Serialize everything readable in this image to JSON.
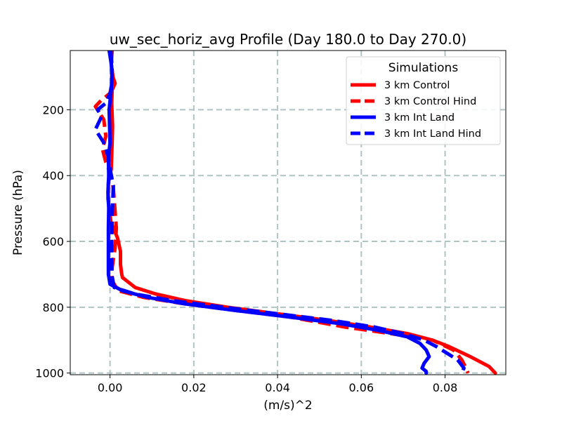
{
  "chart_data": {
    "type": "line",
    "title": "uw_sec_horiz_avg Profile (Day 180.0 to Day 270.0)",
    "xlabel": "(m/s)^2",
    "ylabel": "Pressure (hPa)",
    "xlim": [
      -0.0095,
      0.0945
    ],
    "ylim": [
      1005,
      20
    ],
    "y_inverted": true,
    "grid": true,
    "xticks": [
      0.0,
      0.02,
      0.04,
      0.06,
      0.08
    ],
    "xtick_labels": [
      "0.00",
      "0.02",
      "0.04",
      "0.06",
      "0.08"
    ],
    "yticks": [
      200,
      400,
      600,
      800,
      1000
    ],
    "ytick_labels": [
      "200",
      "400",
      "600",
      "800",
      "1000"
    ],
    "legend": {
      "title": "Simulations",
      "placement": "upper-right"
    },
    "series": [
      {
        "name": "3 km Control",
        "color": "#ff0000",
        "dash": "solid",
        "x": [
          0.0005,
          0.0003,
          0.0007,
          0.0012,
          0.0005,
          0.0004,
          0.0006,
          0.0005,
          0.0003,
          -0.0004,
          -0.0005,
          0.0002,
          0.0018,
          0.0025,
          0.0025,
          0.0028,
          0.003,
          0.004,
          0.006,
          0.011,
          0.018,
          0.028,
          0.04,
          0.052,
          0.062,
          0.071,
          0.077,
          0.081,
          0.086,
          0.0905,
          0.092
        ],
        "y": [
          20,
          60,
          100,
          120,
          140,
          180,
          250,
          300,
          380,
          420,
          470,
          540,
          590,
          630,
          670,
          700,
          710,
          720,
          740,
          760,
          780,
          800,
          820,
          840,
          860,
          880,
          900,
          920,
          950,
          980,
          1000
        ]
      },
      {
        "name": "3 km Control Hind",
        "color": "#ff0000",
        "dash": "dashed",
        "x": [
          0.0002,
          0.0005,
          0.0004,
          0.0,
          -0.002,
          -0.0035,
          -0.0015,
          -0.001,
          -0.0018,
          -0.001,
          0.0003,
          0.0008,
          0.0015,
          0.0012,
          0.0005,
          0.0005,
          0.002,
          0.008,
          0.018,
          0.03,
          0.043,
          0.056,
          0.067,
          0.077,
          0.082,
          0.084,
          0.085,
          0.0855
        ],
        "y": [
          20,
          80,
          120,
          150,
          170,
          190,
          230,
          280,
          320,
          360,
          400,
          440,
          560,
          620,
          680,
          720,
          750,
          770,
          790,
          810,
          830,
          860,
          880,
          900,
          930,
          960,
          985,
          1000
        ]
      },
      {
        "name": "3 km Int Land",
        "color": "#0000ff",
        "dash": "solid",
        "x": [
          -0.0002,
          0.0003,
          0.0005,
          0.0002,
          -0.0002,
          -0.0001,
          0.0,
          -0.0004,
          -0.0003,
          -0.0005,
          -0.0003,
          -0.0004,
          -0.0004,
          -0.0004,
          0.0,
          0.003,
          0.009,
          0.018,
          0.03,
          0.043,
          0.055,
          0.064,
          0.071,
          0.074,
          0.0755,
          0.0762,
          0.075,
          0.0745,
          0.0755,
          0.0755
        ],
        "y": [
          20,
          60,
          100,
          150,
          200,
          250,
          300,
          350,
          400,
          450,
          500,
          560,
          620,
          700,
          730,
          750,
          770,
          790,
          810,
          830,
          850,
          870,
          890,
          910,
          930,
          950,
          970,
          985,
          995,
          1000
        ]
      },
      {
        "name": "3 km Int Land Hind",
        "color": "#0000ff",
        "dash": "dashed",
        "x": [
          0.0002,
          0.0005,
          0.0003,
          -0.001,
          -0.003,
          -0.002,
          -0.0035,
          -0.0015,
          -0.0005,
          0.0,
          0.0008,
          0.0005,
          0.0004,
          0.0004,
          0.001,
          0.006,
          0.015,
          0.027,
          0.04,
          0.053,
          0.063,
          0.07,
          0.075,
          0.078,
          0.0805,
          0.083,
          0.0845,
          0.084
        ],
        "y": [
          20,
          80,
          140,
          180,
          200,
          220,
          260,
          300,
          340,
          380,
          430,
          520,
          620,
          700,
          740,
          760,
          780,
          800,
          820,
          840,
          860,
          880,
          900,
          920,
          940,
          960,
          985,
          1000
        ]
      }
    ]
  }
}
